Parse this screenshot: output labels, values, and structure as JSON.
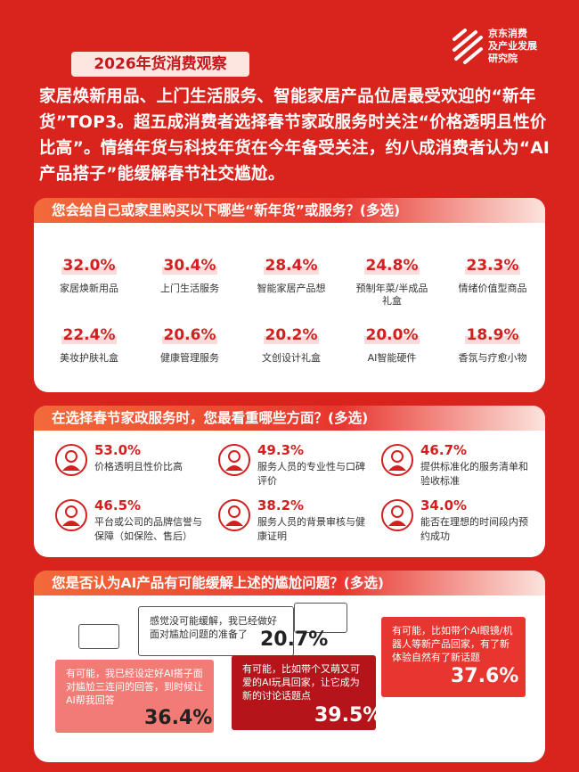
{
  "header": {
    "title": "2026年货消费观察",
    "logo": [
      "京东消费",
      "及产业发展",
      "研究院"
    ]
  },
  "intro": "家居焕新用品、上门生活服务、智能家居产品位居最受欢迎的“新年货”TOP3。超五成消费者选择春节家政服务时关注“价格透明且性价比高”。情绪年货与科技年货在今年备受关注，约八成消费者认为“AI产品搭子”能缓解春节社交尴尬。",
  "section1": {
    "title": "您会给自己或家里购买以下哪些“新年货”或服务？(多选)",
    "items": [
      {
        "value": "32.0%",
        "label": "家居焕新用品"
      },
      {
        "value": "30.4%",
        "label": "上门生活服务"
      },
      {
        "value": "28.4%",
        "label": "智能家居产品想"
      },
      {
        "value": "24.8%",
        "label": "预制年菜/半成品礼盒"
      },
      {
        "value": "23.3%",
        "label": "情绪价值型商品"
      },
      {
        "value": "22.4%",
        "label": "美妆护肤礼盒"
      },
      {
        "value": "20.6%",
        "label": "健康管理服务"
      },
      {
        "value": "20.2%",
        "label": "文创设计礼盒"
      },
      {
        "value": "20.0%",
        "label": "AI智能硬件"
      },
      {
        "value": "18.9%",
        "label": "香氛与疗愈小物"
      }
    ]
  },
  "section2": {
    "title": "在选择春节家政服务时，您最看重哪些方面？(多选)",
    "items": [
      {
        "value": "53.0%",
        "label": "价格透明且性价比高"
      },
      {
        "value": "49.3%",
        "label": "服务人员的专业性与口碑评价"
      },
      {
        "value": "46.7%",
        "label": "提供标准化的服务清单和验收标准"
      },
      {
        "value": "46.5%",
        "label": "平台或公司的品牌信誉与保障（如保险、售后）"
      },
      {
        "value": "38.2%",
        "label": "服务人员的背景审核与健康证明"
      },
      {
        "value": "34.0%",
        "label": "能否在理想的时间段内预约成功"
      }
    ]
  },
  "section3": {
    "title": "您是否认为AI产品有可能缓解上述的尴尬问题？(多选)",
    "bubbles": [
      {
        "text": "感觉没可能缓解，我已经做好面对尴尬问题的准备了",
        "value": "20.7%"
      },
      {
        "text": "有可能，我已经设定好AI搭子面对尴尬三连问的回答，到时候让AI帮我回答",
        "value": "36.4%"
      },
      {
        "text": "有可能，比如带个又萌又可爱的AI玩具回家，让它成为新的讨论话题点",
        "value": "39.5%"
      },
      {
        "text": "有可能，比如带个AI眼镜/机器人等新产品回家，有了新体验自然有了新话题",
        "value": "37.6%"
      }
    ]
  }
}
